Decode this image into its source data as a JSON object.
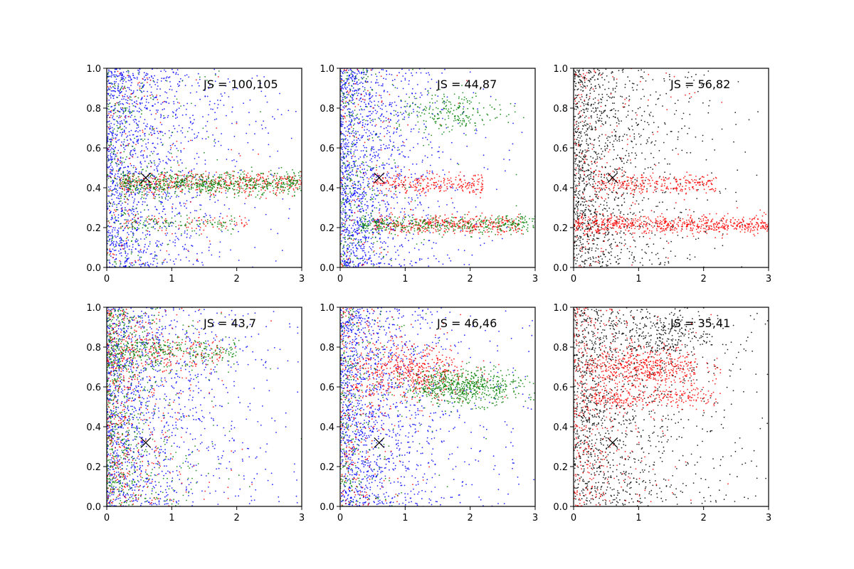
{
  "chart_data": [
    {
      "type": "scatter",
      "annotation": "JS = 100,105",
      "xlim": [
        0,
        3
      ],
      "ylim": [
        0,
        1
      ],
      "xticks": [
        "0",
        "1",
        "2",
        "3"
      ],
      "yticks": [
        "0.0",
        "0.2",
        "0.4",
        "0.6",
        "0.8",
        "1.0"
      ],
      "marker": {
        "x": 0.6,
        "y": 0.45
      },
      "series": [
        {
          "color": "#0000ff",
          "clusters": [
            {
              "n": 1500,
              "x": {
                "dist": "exp",
                "scale": 0.7,
                "max": 3
              },
              "y": {
                "dist": "uniform",
                "min": 0,
                "max": 1
              }
            }
          ]
        },
        {
          "color": "#ff0000",
          "clusters": [
            {
              "n": 450,
              "x": {
                "dist": "uniform",
                "min": 0.2,
                "max": 3
              },
              "y": {
                "dist": "normal",
                "mean": 0.42,
                "sd": 0.028
              }
            },
            {
              "n": 150,
              "x": {
                "dist": "exp",
                "scale": 0.6,
                "max": 3
              },
              "y": {
                "dist": "uniform",
                "min": 0,
                "max": 1
              }
            },
            {
              "n": 80,
              "x": {
                "dist": "uniform",
                "min": 0.2,
                "max": 2.2
              },
              "y": {
                "dist": "normal",
                "mean": 0.22,
                "sd": 0.025
              }
            }
          ]
        },
        {
          "color": "#008000",
          "clusters": [
            {
              "n": 650,
              "x": {
                "dist": "uniform",
                "min": 0.2,
                "max": 3
              },
              "y": {
                "dist": "normal",
                "mean": 0.42,
                "sd": 0.028
              }
            },
            {
              "n": 300,
              "x": {
                "dist": "exp",
                "scale": 0.5,
                "max": 3
              },
              "y": {
                "dist": "uniform",
                "min": 0,
                "max": 1
              }
            },
            {
              "n": 100,
              "x": {
                "dist": "uniform",
                "min": 0.2,
                "max": 2.0
              },
              "y": {
                "dist": "normal",
                "mean": 0.22,
                "sd": 0.025
              }
            }
          ]
        }
      ]
    },
    {
      "type": "scatter",
      "annotation": "JS = 44,87",
      "xlim": [
        0,
        3
      ],
      "ylim": [
        0,
        1
      ],
      "xticks": [
        "0",
        "1",
        "2",
        "3"
      ],
      "yticks": [
        "0.0",
        "0.2",
        "0.4",
        "0.6",
        "0.8",
        "1.0"
      ],
      "marker": {
        "x": 0.6,
        "y": 0.45
      },
      "series": [
        {
          "color": "#0000ff",
          "clusters": [
            {
              "n": 1500,
              "x": {
                "dist": "exp",
                "scale": 0.55,
                "max": 3
              },
              "y": {
                "dist": "uniform",
                "min": 0,
                "max": 1
              }
            }
          ]
        },
        {
          "color": "#ff0000",
          "clusters": [
            {
              "n": 400,
              "x": {
                "dist": "uniform",
                "min": 0.5,
                "max": 2.8
              },
              "y": {
                "dist": "normal",
                "mean": 0.215,
                "sd": 0.022
              }
            },
            {
              "n": 280,
              "x": {
                "dist": "uniform",
                "min": 0.5,
                "max": 2.2
              },
              "y": {
                "dist": "normal",
                "mean": 0.42,
                "sd": 0.025
              }
            },
            {
              "n": 120,
              "x": {
                "dist": "exp",
                "scale": 0.4,
                "max": 3
              },
              "y": {
                "dist": "uniform",
                "min": 0,
                "max": 1
              }
            }
          ]
        },
        {
          "color": "#008000",
          "clusters": [
            {
              "n": 400,
              "x": {
                "dist": "uniform",
                "min": 0.3,
                "max": 3
              },
              "y": {
                "dist": "normal",
                "mean": 0.215,
                "sd": 0.022
              }
            },
            {
              "n": 220,
              "x": {
                "dist": "normal",
                "mean": 1.7,
                "sd": 0.4
              },
              "y": {
                "dist": "normal",
                "mean": 0.78,
                "sd": 0.05
              }
            },
            {
              "n": 300,
              "x": {
                "dist": "exp",
                "scale": 0.35,
                "max": 3
              },
              "y": {
                "dist": "uniform",
                "min": 0,
                "max": 1
              }
            }
          ]
        }
      ]
    },
    {
      "type": "scatter",
      "annotation": "JS = 56,82",
      "xlim": [
        0,
        3
      ],
      "ylim": [
        0,
        1
      ],
      "xticks": [
        "0",
        "1",
        "2",
        "3"
      ],
      "yticks": [
        "0.0",
        "0.2",
        "0.4",
        "0.6",
        "0.8",
        "1.0"
      ],
      "marker": {
        "x": 0.6,
        "y": 0.45
      },
      "series": [
        {
          "color": "#000000",
          "clusters": [
            {
              "n": 1300,
              "x": {
                "dist": "exp",
                "scale": 0.6,
                "max": 3
              },
              "y": {
                "dist": "uniform",
                "min": 0,
                "max": 1
              }
            }
          ]
        },
        {
          "color": "#ff0000",
          "clusters": [
            {
              "n": 650,
              "x": {
                "dist": "uniform",
                "min": 0,
                "max": 3
              },
              "y": {
                "dist": "normal",
                "mean": 0.215,
                "sd": 0.022
              }
            },
            {
              "n": 280,
              "x": {
                "dist": "uniform",
                "min": 0.3,
                "max": 2.2
              },
              "y": {
                "dist": "normal",
                "mean": 0.42,
                "sd": 0.025
              }
            },
            {
              "n": 200,
              "x": {
                "dist": "exp",
                "scale": 0.5,
                "max": 3
              },
              "y": {
                "dist": "uniform",
                "min": 0,
                "max": 1
              }
            }
          ]
        }
      ]
    },
    {
      "type": "scatter",
      "annotation": "JS = 43,7",
      "xlim": [
        0,
        3
      ],
      "ylim": [
        0,
        1
      ],
      "xticks": [
        "0",
        "1",
        "2",
        "3"
      ],
      "yticks": [
        "0.0",
        "0.2",
        "0.4",
        "0.6",
        "0.8",
        "1.0"
      ],
      "marker": {
        "x": 0.6,
        "y": 0.32
      },
      "series": [
        {
          "color": "#0000ff",
          "clusters": [
            {
              "n": 1400,
              "x": {
                "dist": "exp",
                "scale": 0.8,
                "max": 3
              },
              "y": {
                "dist": "uniform",
                "min": 0,
                "max": 1
              }
            }
          ]
        },
        {
          "color": "#ff0000",
          "clusters": [
            {
              "n": 500,
              "x": {
                "dist": "exp",
                "scale": 0.45,
                "max": 3
              },
              "y": {
                "dist": "uniform",
                "min": 0,
                "max": 1
              }
            },
            {
              "n": 200,
              "x": {
                "dist": "uniform",
                "min": 0,
                "max": 1.8
              },
              "y": {
                "dist": "normal",
                "mean": 0.78,
                "sd": 0.05
              }
            }
          ]
        },
        {
          "color": "#008000",
          "clusters": [
            {
              "n": 650,
              "x": {
                "dist": "exp",
                "scale": 0.4,
                "max": 3
              },
              "y": {
                "dist": "uniform",
                "min": 0,
                "max": 1
              }
            },
            {
              "n": 300,
              "x": {
                "dist": "uniform",
                "min": 0,
                "max": 2.0
              },
              "y": {
                "dist": "normal",
                "mean": 0.78,
                "sd": 0.04
              }
            }
          ]
        }
      ]
    },
    {
      "type": "scatter",
      "annotation": "JS = 46,46",
      "xlim": [
        0,
        3
      ],
      "ylim": [
        0,
        1
      ],
      "xticks": [
        "0",
        "1",
        "2",
        "3"
      ],
      "yticks": [
        "0.0",
        "0.2",
        "0.4",
        "0.6",
        "0.8",
        "1.0"
      ],
      "marker": {
        "x": 0.6,
        "y": 0.32
      },
      "series": [
        {
          "color": "#0000ff",
          "clusters": [
            {
              "n": 1500,
              "x": {
                "dist": "exp",
                "scale": 0.7,
                "max": 3
              },
              "y": {
                "dist": "uniform",
                "min": 0,
                "max": 1
              }
            }
          ]
        },
        {
          "color": "#ff0000",
          "clusters": [
            {
              "n": 500,
              "x": {
                "dist": "normal",
                "mean": 1.1,
                "sd": 0.45
              },
              "y": {
                "dist": "normal",
                "mean": 0.67,
                "sd": 0.07
              }
            },
            {
              "n": 300,
              "x": {
                "dist": "exp",
                "scale": 0.35,
                "max": 3
              },
              "y": {
                "dist": "uniform",
                "min": 0,
                "max": 1
              }
            }
          ]
        },
        {
          "color": "#008000",
          "clusters": [
            {
              "n": 650,
              "x": {
                "dist": "normal",
                "mean": 1.9,
                "sd": 0.45
              },
              "y": {
                "dist": "normal",
                "mean": 0.6,
                "sd": 0.045
              }
            },
            {
              "n": 250,
              "x": {
                "dist": "exp",
                "scale": 0.3,
                "max": 3
              },
              "y": {
                "dist": "uniform",
                "min": 0,
                "max": 1
              }
            }
          ]
        }
      ]
    },
    {
      "type": "scatter",
      "annotation": "JS = 35,41",
      "xlim": [
        0,
        3
      ],
      "ylim": [
        0,
        1
      ],
      "xticks": [
        "0",
        "1",
        "2",
        "3"
      ],
      "yticks": [
        "0.0",
        "0.2",
        "0.4",
        "0.6",
        "0.8",
        "1.0"
      ],
      "marker": {
        "x": 0.6,
        "y": 0.32
      },
      "series": [
        {
          "color": "#000000",
          "clusters": [
            {
              "n": 1300,
              "x": {
                "dist": "exp",
                "scale": 0.9,
                "max": 3
              },
              "y": {
                "dist": "uniform",
                "min": 0,
                "max": 1
              }
            },
            {
              "n": 250,
              "x": {
                "dist": "normal",
                "mean": 1.3,
                "sd": 0.4
              },
              "y": {
                "dist": "normal",
                "mean": 0.85,
                "sd": 0.06
              }
            }
          ]
        },
        {
          "color": "#ff0000",
          "clusters": [
            {
              "n": 500,
              "x": {
                "dist": "normal",
                "mean": 1.1,
                "sd": 0.45
              },
              "y": {
                "dist": "normal",
                "mean": 0.7,
                "sd": 0.05
              }
            },
            {
              "n": 250,
              "x": {
                "dist": "uniform",
                "min": 0.3,
                "max": 2.2
              },
              "y": {
                "dist": "normal",
                "mean": 0.55,
                "sd": 0.03
              }
            },
            {
              "n": 400,
              "x": {
                "dist": "exp",
                "scale": 0.4,
                "max": 3
              },
              "y": {
                "dist": "uniform",
                "min": 0,
                "max": 1
              }
            }
          ]
        }
      ]
    }
  ]
}
